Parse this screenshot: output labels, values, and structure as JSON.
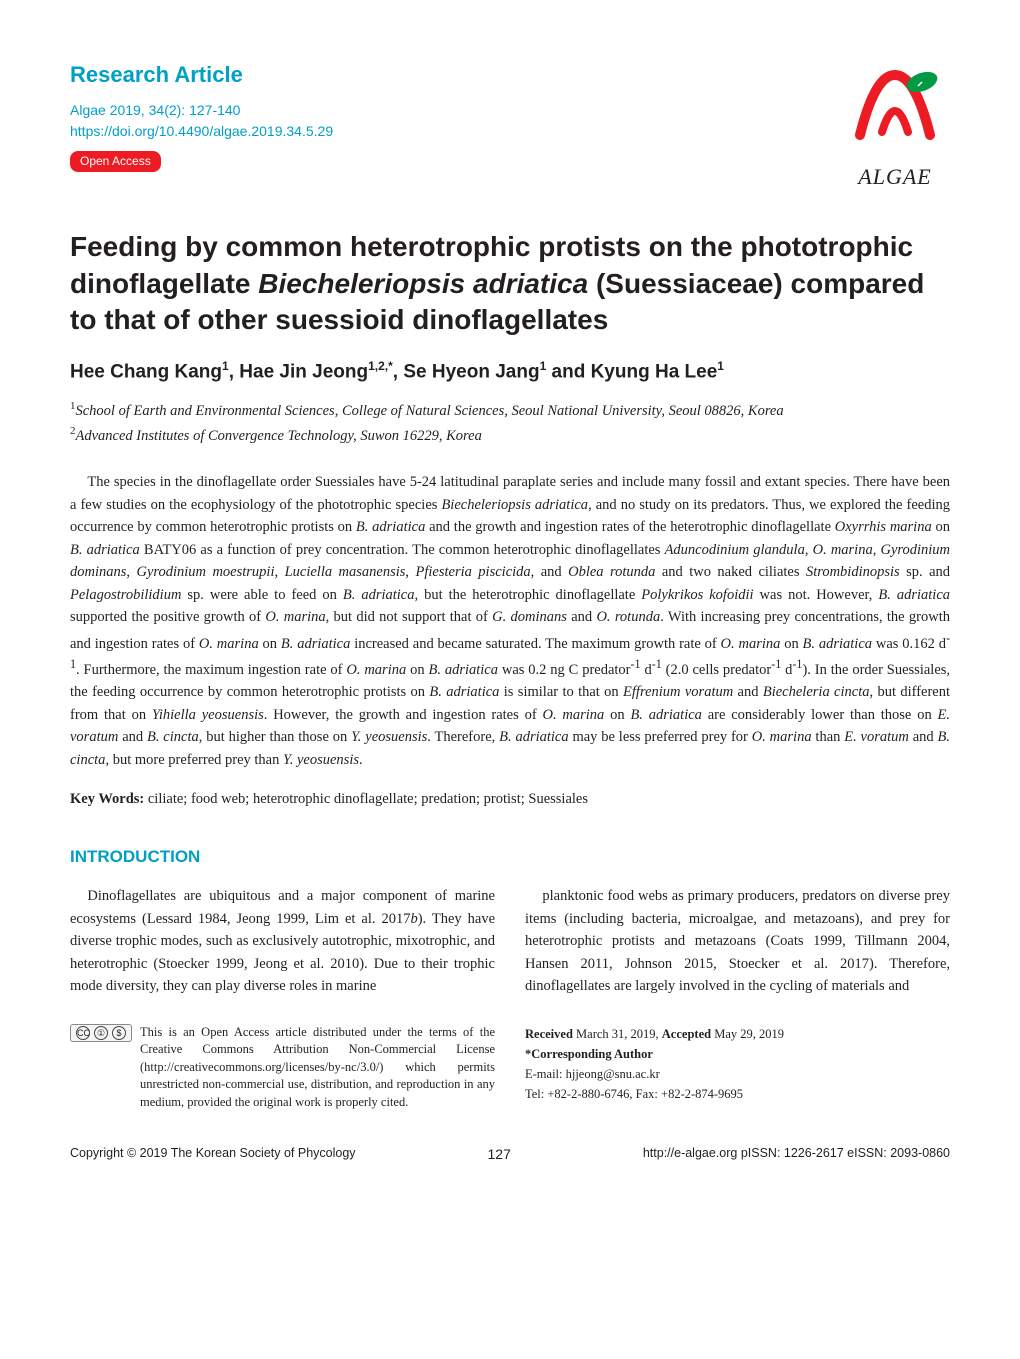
{
  "colors": {
    "accent": "#00a0c6",
    "badge_bg": "#ed1c24",
    "badge_text": "#ffffff",
    "text": "#231f20",
    "background": "#ffffff"
  },
  "typography": {
    "body_family": "Georgia, serif",
    "heading_family": "Segoe UI, Arial, sans-serif",
    "title_size_pt": 21,
    "author_size_pt": 14,
    "body_size_pt": 11,
    "footer_size_pt": 9
  },
  "header": {
    "section_label": "Research Article",
    "citation": "Algae 2019, 34(2): 127-140",
    "doi": "https://doi.org/10.4490/algae.2019.34.5.29",
    "badge": "Open  Access",
    "logo_text": "ALGAE"
  },
  "title_parts": {
    "pre": "Feeding by common heterotrophic protists on the phototrophic dinoflagellate ",
    "species": "Biecheleriopsis adriatica",
    "post": " (Suessiaceae) compared to that of other suessioid dinoflagellates"
  },
  "authors_html": "Hee Chang Kang<sup>1</sup>, Hae Jin Jeong<sup>1,2,*</sup>, Se Hyeon Jang<sup>1</sup> and Kyung Ha Lee<sup>1</sup>",
  "affiliations": {
    "a1": "School of Earth and Environmental Sciences, College of Natural Sciences, Seoul National University, Seoul 08826, Korea",
    "a2": "Advanced Institutes of Convergence Technology, Suwon 16229, Korea"
  },
  "abstract_html": "The species in the dinoflagellate order Suessiales have 5-24 latitudinal paraplate series and include many fossil and extant species. There have been a few studies on the ecophysiology of the phototrophic species <span class=\"species\">Biecheleriopsis adriatica</span>, and no study on its predators. Thus, we explored the feeding occurrence by common heterotrophic protists on <span class=\"species\">B. adriatica</span> and the growth and ingestion rates of the heterotrophic dinoflagellate <span class=\"species\">Oxyrrhis marina</span> on <span class=\"species\">B. adriatica</span> BATY06 as a function of prey concentration. The common heterotrophic dinoflagellates <span class=\"species\">Aduncodinium glandula</span>, <span class=\"species\">O. marina</span>, <span class=\"species\">Gyrodinium dominans</span>, <span class=\"species\">Gyrodinium moestrupii</span>, <span class=\"species\">Luciella masanensis</span>, <span class=\"species\">Pfiesteria piscicida</span>, and <span class=\"species\">Oblea rotunda</span> and two naked ciliates <span class=\"species\">Strombidinopsis</span> sp. and <span class=\"species\">Pelagostrobilidium</span> sp. were able to feed on <span class=\"species\">B. adriatica</span>, but the heterotrophic dinoflagellate <span class=\"species\">Polykrikos kofoidii</span> was not. However, <span class=\"species\">B. adriatica</span> supported the positive growth of <span class=\"species\">O. marina</span>, but did not support that of <span class=\"species\">G. dominans</span> and <span class=\"species\">O. rotunda</span>. With increasing prey concentrations, the growth and ingestion rates of <span class=\"species\">O. marina</span> on <span class=\"species\">B. adriatica</span> increased and became saturated. The maximum growth rate of <span class=\"species\">O. marina</span> on <span class=\"species\">B. adriatica</span> was 0.162 d<sup>-1</sup>. Furthermore, the maximum ingestion rate of <span class=\"species\">O. marina</span> on <span class=\"species\">B. adriatica</span> was 0.2 ng C predator<sup>-1</sup> d<sup>-1</sup> (2.0 cells predator<sup>-1</sup> d<sup>-1</sup>). In the order Suessiales, the feeding occurrence by common heterotrophic protists on <span class=\"species\">B. adriatica</span> is similar to that on <span class=\"species\">Effrenium voratum</span> and <span class=\"species\">Biecheleria cincta</span>, but different from that on <span class=\"species\">Yihiella yeosuensis</span>. However, the growth and ingestion rates of <span class=\"species\">O. marina</span> on <span class=\"species\">B. adriatica</span> are considerably lower than those on <span class=\"species\">E. voratum</span> and <span class=\"species\">B. cincta</span>, but higher than those on <span class=\"species\">Y. yeosuensis</span>. Therefore, <span class=\"species\">B. adriatica</span> may be less preferred prey for <span class=\"species\">O. marina</span> than <span class=\"species\">E. voratum</span> and <span class=\"species\">B. cincta</span>, but more preferred prey than <span class=\"species\">Y. yeosuensis</span>.",
  "keywords": {
    "label": "Key Words:",
    "text": " ciliate; food web; heterotrophic dinoflagellate; predation; protist; Suessiales"
  },
  "intro": {
    "heading": "INTRODUCTION",
    "left_html": "Dinoflagellates are ubiquitous and a major component of marine ecosystems (Lessard 1984, Jeong 1999, Lim et al. 2017<span class=\"species\">b</span>). They have diverse trophic modes, such as exclusively autotrophic, mixotrophic, and heterotrophic (Stoecker 1999, Jeong et al. 2010). Due to their trophic mode diversity, they can play diverse roles in marine",
    "right_html": "planktonic food webs as primary producers, predators on diverse prey items (including bacteria, microalgae, and metazoans), and prey for heterotrophic protists and metazoans (Coats 1999, Tillmann 2004, Hansen 2011, Johnson 2015, Stoecker et al. 2017). Therefore, dinoflagellates are largely involved in the cycling of materials and"
  },
  "license": {
    "cc_label": "CC",
    "text": "This is an Open Access article distributed under the terms of the Creative Commons Attribution Non-Commercial License (http://creativecommons.org/licenses/by-nc/3.0/) which permits unrestricted non-commercial use, distribution, and reproduction in any medium, provided the original work is properly cited."
  },
  "correspondence": {
    "received_label": "Received",
    "received_date": " March 31, 2019, ",
    "accepted_label": "Accepted",
    "accepted_date": " May 29, 2019",
    "corr_label": "*Corresponding Author",
    "email": "E-mail: hjjeong@snu.ac.kr",
    "phone": "Tel: +82-2-880-6746,  Fax: +82-2-874-9695"
  },
  "footer": {
    "copyright": "Copyright © 2019 The Korean Society of Phycology",
    "page": "127",
    "issn": "http://e-algae.org  pISSN: 1226-2617  eISSN: 2093-0860"
  }
}
